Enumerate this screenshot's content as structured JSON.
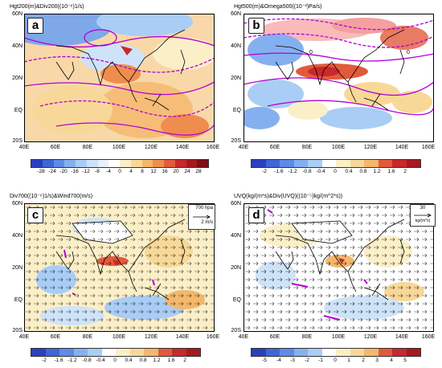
{
  "panels": [
    {
      "letter": "a",
      "title": "Hgt200(m)&Div200((10⁻⁶)1/s)"
    },
    {
      "letter": "b",
      "title": "Hgt500(m)&Omega500((10⁻²)Pa/s)"
    },
    {
      "letter": "c",
      "title": "Div700((10⁻⁶)1/s)&Wind700(m/s)"
    },
    {
      "letter": "d",
      "title": "UVQ(kg/(m*s)&Div(UVQ)((10⁻⁵)kg/(m^2*s))"
    }
  ],
  "lat_labels": [
    "60N",
    "40N",
    "20N",
    "EQ",
    "20S"
  ],
  "lon_labels": [
    "40E",
    "60E",
    "80E",
    "100E",
    "120E",
    "140E",
    "160E"
  ],
  "colorbars": {
    "a": [
      "-28",
      "-24",
      "-20",
      "-16",
      "-12",
      "-8",
      "-4",
      "0",
      "4",
      "8",
      "12",
      "16",
      "20",
      "24",
      "28"
    ],
    "b": [
      "-2",
      "-1.6",
      "-1.2",
      "-0.8",
      "-0.4",
      "0",
      "0.4",
      "0.8",
      "1.2",
      "1.6",
      "2"
    ],
    "c": [
      "-2",
      "-1.6",
      "-1.2",
      "-0.8",
      "-0.4",
      "0",
      "0.4",
      "0.8",
      "1.2",
      "1.6",
      "2"
    ],
    "d": [
      "-5",
      "-4",
      "-3",
      "-2",
      "-1",
      "0",
      "1",
      "2",
      "3",
      "4",
      "5"
    ]
  },
  "contour_labels": {
    "b": [
      "0",
      "0"
    ]
  },
  "reference_vectors": {
    "c": {
      "level": "700 hpa",
      "magnitude": "2 m/s"
    },
    "d": {
      "magnitude": "30",
      "unit": "kg/(m*s)"
    }
  },
  "colors": {
    "negative": [
      "#2b3fbf",
      "#3f66d6",
      "#5d8ce6",
      "#85b0f0",
      "#a9cdf5",
      "#cfe3f8"
    ],
    "positive": [
      "#fbefc8",
      "#f8d898",
      "#f4b76c",
      "#ef8d4f",
      "#e25a3c",
      "#c7292c"
    ],
    "contour": "#b300d6",
    "coast": "#000000"
  }
}
